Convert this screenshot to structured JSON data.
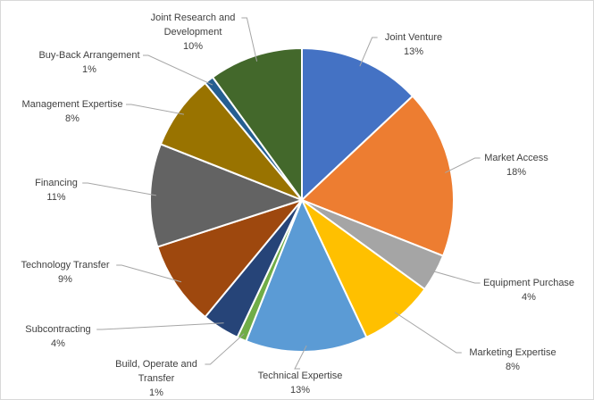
{
  "chart_data": {
    "type": "pie",
    "categories": [
      "Joint Venture",
      "Market Access",
      "Equipment Purchase",
      "Marketing Expertise",
      "Technical Expertise",
      "Build, Operate and Transfer",
      "Subcontracting",
      "Technology Transfer",
      "Financing",
      "Management Expertise",
      "Buy-Back Arrangement",
      "Joint Research and Development"
    ],
    "values": [
      13,
      18,
      4,
      8,
      13,
      1,
      4,
      9,
      11,
      8,
      1,
      10
    ],
    "value_labels": [
      "13%",
      "18%",
      "4%",
      "8%",
      "13%",
      "1%",
      "4%",
      "9%",
      "11%",
      "8%",
      "1%",
      "10%"
    ],
    "colors": [
      "#4472c4",
      "#ed7d31",
      "#a5a5a5",
      "#ffc000",
      "#5b9bd5",
      "#70ad47",
      "#264478",
      "#9e480e",
      "#636363",
      "#997300",
      "#255e91",
      "#43682b"
    ]
  }
}
